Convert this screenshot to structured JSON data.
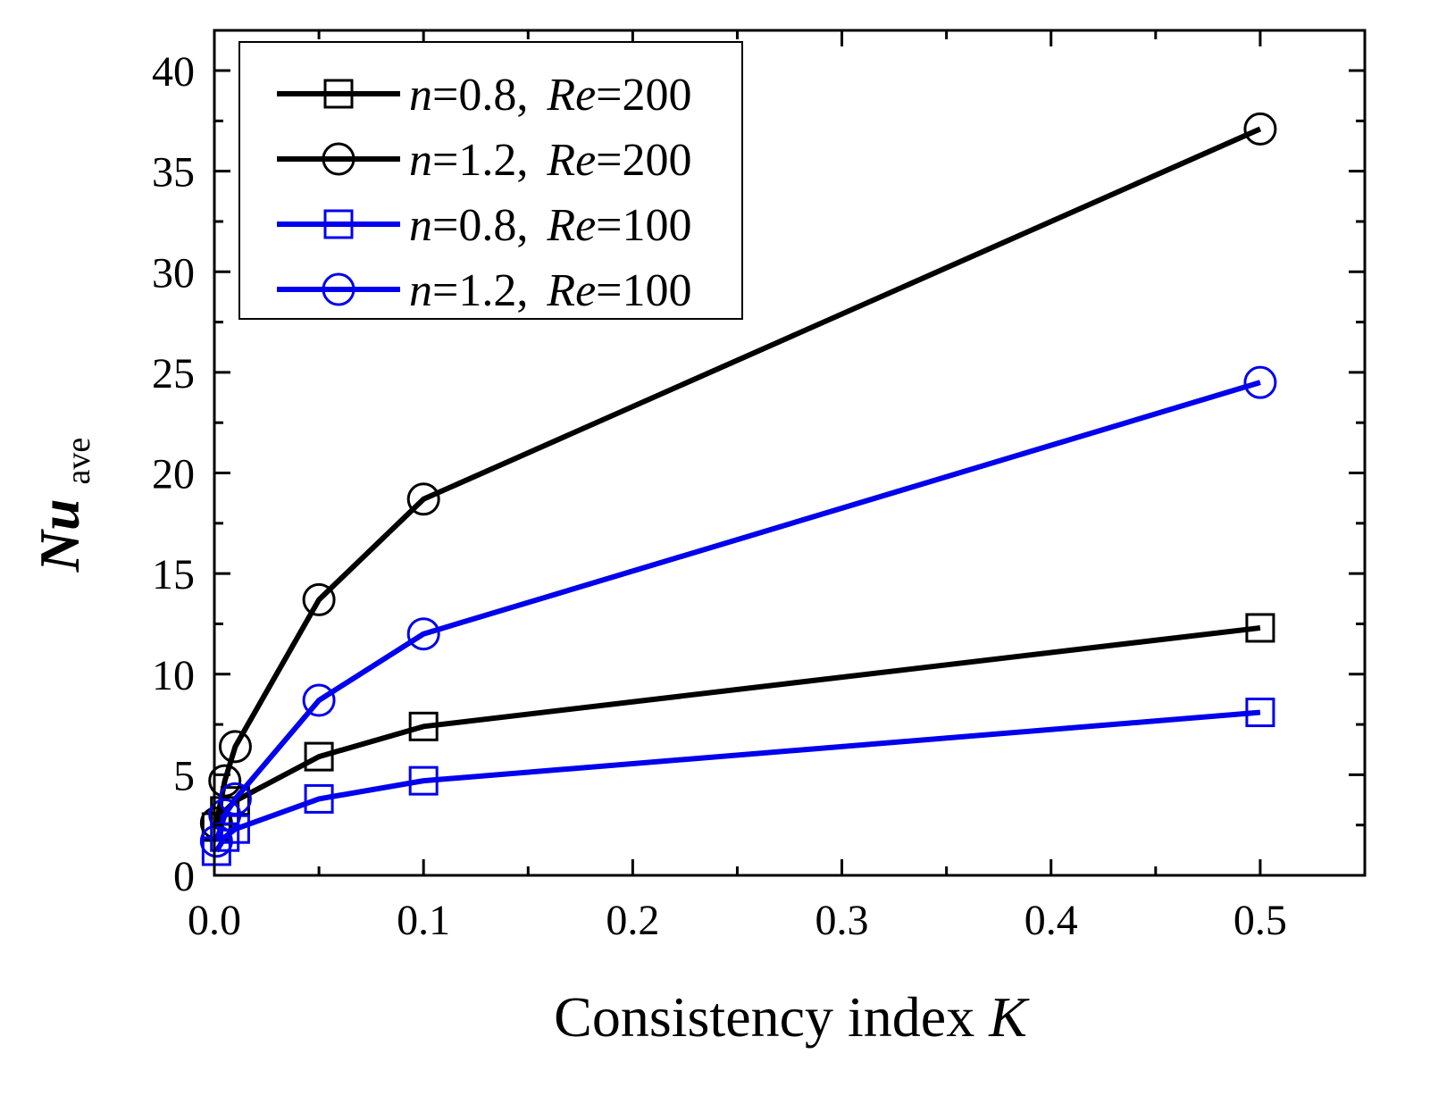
{
  "chart_data": {
    "type": "line",
    "xlabel": "Consistency index",
    "xlabel_var": "K",
    "ylabel_main": "Nu",
    "ylabel_sub": "ave",
    "xlim": [
      0,
      0.55
    ],
    "ylim": [
      0,
      42
    ],
    "x_ticks": [
      0.0,
      0.1,
      0.2,
      0.3,
      0.4,
      0.5
    ],
    "x_tick_labels": [
      "0.0",
      "0.1",
      "0.2",
      "0.3",
      "0.4",
      "0.5"
    ],
    "y_ticks": [
      0,
      5,
      10,
      15,
      20,
      25,
      30,
      35,
      40
    ],
    "y_tick_labels": [
      "0",
      "5",
      "10",
      "15",
      "20",
      "25",
      "30",
      "35",
      "40"
    ],
    "grid": false,
    "legend_position": "top-left",
    "series": [
      {
        "name": "n=0.8, Re=200",
        "legend_label": {
          "n_sym": "n",
          "n_val": "=0.8, ",
          "re_sym": "Re",
          "re_val": "=200"
        },
        "color": "#000000",
        "marker": "square",
        "x": [
          0.001,
          0.005,
          0.01,
          0.05,
          0.1,
          0.5
        ],
        "y": [
          2.4,
          3.2,
          3.7,
          5.9,
          7.4,
          12.3
        ]
      },
      {
        "name": "n=1.2, Re=200",
        "legend_label": {
          "n_sym": "n",
          "n_val": "=1.2, ",
          "re_sym": "Re",
          "re_val": "=200"
        },
        "color": "#000000",
        "marker": "circle",
        "x": [
          0.001,
          0.005,
          0.01,
          0.05,
          0.1,
          0.5
        ],
        "y": [
          2.6,
          4.7,
          6.4,
          13.7,
          18.7,
          37.1
        ]
      },
      {
        "name": "n=0.8, Re=100",
        "legend_label": {
          "n_sym": "n",
          "n_val": "=0.8, ",
          "re_sym": "Re",
          "re_val": "=100"
        },
        "color": "#0000ee",
        "marker": "square",
        "x": [
          0.001,
          0.005,
          0.01,
          0.05,
          0.1,
          0.5
        ],
        "y": [
          1.2,
          1.9,
          2.3,
          3.8,
          4.7,
          8.1
        ]
      },
      {
        "name": "n=1.2, Re=100",
        "legend_label": {
          "n_sym": "n",
          "n_val": "=1.2, ",
          "re_sym": "Re",
          "re_val": "=100"
        },
        "color": "#0000ee",
        "marker": "circle",
        "x": [
          0.001,
          0.005,
          0.01,
          0.05,
          0.1,
          0.5
        ],
        "y": [
          1.7,
          3.0,
          3.8,
          8.7,
          12.0,
          24.5
        ]
      }
    ]
  }
}
